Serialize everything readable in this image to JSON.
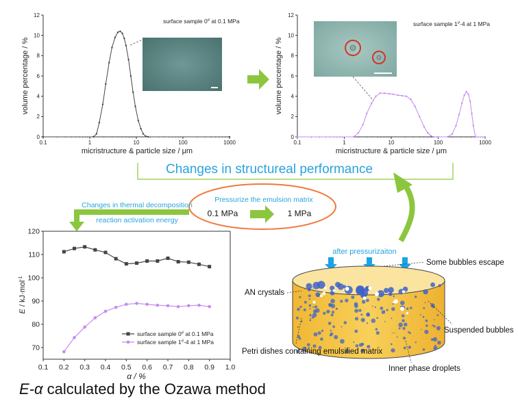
{
  "colors": {
    "accent_blue": "#29a3dd",
    "arrow_green": "#8cc63f",
    "oval_orange": "#f0783c",
    "series_black": "#444444",
    "series_purple": "#c58af0",
    "petri_yellow": "#f6c94b",
    "droplet_blue": "#3d63c9",
    "pressure_arrow": "#1aa3e8"
  },
  "headline": "Changes in structureal performance",
  "oval": {
    "title": "Pressurize the emulsion matrix",
    "from": "0.1 MPa",
    "to": "1 MPa"
  },
  "thermal_note": [
    "Changes in thermal decomposition",
    "reaction activation energy"
  ],
  "petri": {
    "after": "after pressurizaiton",
    "labels": {
      "bubbles_escape": "Some bubbles escape",
      "an_crystals": "AN crystals",
      "suspended": "Suspended bubbles",
      "dish": "Petri dishes containing emulsified matrix",
      "inner": "Inner phase droplets"
    }
  },
  "caption": {
    "prefix": "E-",
    "symbol": "α",
    "rest": " calculated by the Ozawa method"
  },
  "chart_data": [
    {
      "type": "line",
      "id": "psd-left",
      "xscale": "log",
      "xlim": [
        0.1,
        1000
      ],
      "ylim": [
        0,
        12
      ],
      "xticks": [
        0.1,
        1,
        10,
        100,
        1000
      ],
      "xtick_labels": [
        "0.1",
        "1",
        "10",
        "100",
        "1000"
      ],
      "yticks": [
        0,
        2,
        4,
        6,
        8,
        10,
        12
      ],
      "xlabel": "micristructure & particle size / μm",
      "ylabel": "volume percentage / %",
      "annotation": {
        "text": "surface sample 0",
        "sup": "#",
        "tail": " at 0.1 MPa"
      },
      "series": [
        {
          "color": "#444444",
          "x": [
            0.1,
            1.2,
            1.4,
            1.6,
            1.9,
            2.2,
            2.6,
            3.0,
            3.5,
            4.0,
            4.5,
            5.0,
            5.5,
            6.0,
            6.8,
            7.6,
            8.5,
            9.5,
            11,
            12.5,
            14,
            16,
            18,
            1000
          ],
          "y": [
            0,
            0,
            0.3,
            1.4,
            3.2,
            5.2,
            7.3,
            8.8,
            9.8,
            10.3,
            10.4,
            10.2,
            9.7,
            9.0,
            7.6,
            6.0,
            4.4,
            3.0,
            1.6,
            0.8,
            0.3,
            0.05,
            0,
            0
          ]
        }
      ]
    },
    {
      "type": "line",
      "id": "psd-right",
      "xscale": "log",
      "xlim": [
        0.1,
        1000
      ],
      "ylim": [
        0,
        12
      ],
      "xticks": [
        0.1,
        1,
        10,
        100,
        1000
      ],
      "xtick_labels": [
        "0.1",
        "1",
        "10",
        "100",
        "1000"
      ],
      "yticks": [
        0,
        2,
        4,
        6,
        8,
        10,
        12
      ],
      "xlabel": "micristructure & particle size / μm",
      "ylabel": "volume percentage / %",
      "annotation": {
        "text": "surface sample 1",
        "sup": "#",
        "tail": "-4 at 1 MPa"
      },
      "series": [
        {
          "color": "#c58af0",
          "x": [
            0.1,
            1.6,
            2.0,
            2.5,
            3.0,
            3.8,
            4.7,
            5.8,
            7.2,
            9.0,
            11,
            14,
            17,
            21,
            26,
            32,
            40,
            50,
            60,
            70,
            80,
            100,
            160,
            200,
            240,
            280,
            320,
            360,
            400,
            440,
            480,
            520,
            560,
            620,
            1000
          ],
          "y": [
            0,
            0,
            0.4,
            1.2,
            2.3,
            3.3,
            4.0,
            4.3,
            4.3,
            4.25,
            4.2,
            4.1,
            4.05,
            4.0,
            3.7,
            3.0,
            2.0,
            1.0,
            0.4,
            0.1,
            0,
            0,
            0,
            0.3,
            1.1,
            2.2,
            3.3,
            4.1,
            4.45,
            4.2,
            3.5,
            2.3,
            1.1,
            0,
            0
          ]
        }
      ]
    },
    {
      "type": "line",
      "id": "activation-energy",
      "xlim": [
        0.1,
        1.0
      ],
      "ylim": [
        65,
        120
      ],
      "xticks": [
        0.1,
        0.2,
        0.3,
        0.4,
        0.5,
        0.6,
        0.7,
        0.8,
        0.9,
        1.0
      ],
      "xtick_labels": [
        "0.1",
        "0.2",
        "0.3",
        "0.4",
        "0.5",
        "0.6",
        "0.7",
        "0.8",
        "0.9",
        "1.0"
      ],
      "yticks": [
        70,
        80,
        90,
        100,
        110,
        120
      ],
      "xlabel": "α / %",
      "ylabel_parts": {
        "italic": "E",
        "rest": " / kJ·mol",
        "sup": "-1"
      },
      "legend": "bottom-right",
      "series": [
        {
          "name": "surface sample 0# at 0.1 MPa",
          "name_parts": {
            "text": "surface sample 0",
            "sup": "#",
            "tail": " at 0.1 MPa"
          },
          "color": "#444444",
          "marker": "square",
          "x": [
            0.2,
            0.25,
            0.3,
            0.35,
            0.4,
            0.45,
            0.5,
            0.55,
            0.6,
            0.65,
            0.7,
            0.75,
            0.8,
            0.85,
            0.9
          ],
          "y": [
            111.2,
            112.6,
            113.3,
            112.0,
            110.9,
            108.2,
            106.0,
            106.3,
            107.2,
            107.2,
            108.4,
            106.9,
            106.7,
            105.8,
            104.8
          ]
        },
        {
          "name": "surface sample 1#-4 at 1 MPa",
          "name_parts": {
            "text": "surface sample 1",
            "sup": "#",
            "tail": "-4 at 1 MPa"
          },
          "color": "#c58af0",
          "marker": "circle",
          "x": [
            0.2,
            0.25,
            0.3,
            0.35,
            0.4,
            0.45,
            0.5,
            0.55,
            0.6,
            0.65,
            0.7,
            0.75,
            0.8,
            0.85,
            0.9
          ],
          "y": [
            68.2,
            74.3,
            78.8,
            82.8,
            85.6,
            87.3,
            88.6,
            89.0,
            88.6,
            88.2,
            88.0,
            87.6,
            88.0,
            88.2,
            87.6
          ]
        }
      ]
    }
  ]
}
